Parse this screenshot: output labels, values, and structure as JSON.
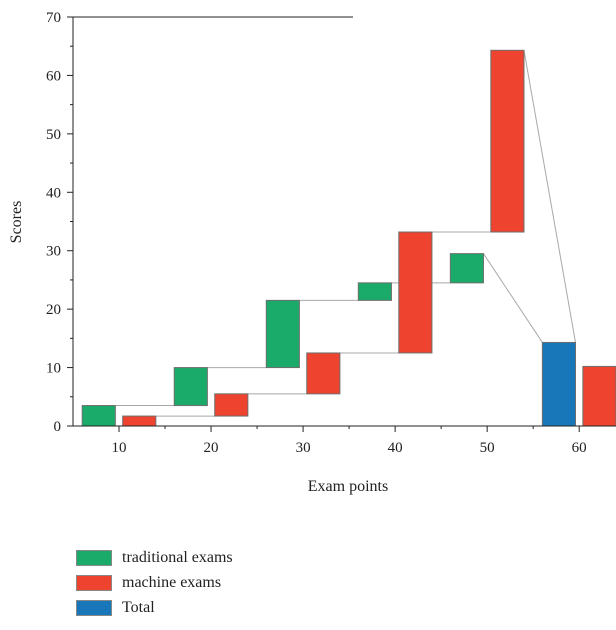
{
  "chart_data": {
    "type": "bar",
    "subtype": "waterfall",
    "title": "",
    "xlabel": "Exam points",
    "ylabel": "Scores",
    "xlim": [
      5,
      64
    ],
    "ylim": [
      0,
      70
    ],
    "xticks": [
      10,
      20,
      30,
      40,
      50,
      60
    ],
    "yticks": [
      0,
      10,
      20,
      30,
      40,
      50,
      60,
      70
    ],
    "series": [
      {
        "name": "traditional exams",
        "color": "#1aaa6a",
        "x": [
          10,
          20,
          30,
          40,
          50
        ],
        "base": [
          0,
          3.5,
          10,
          21.5,
          24.5
        ],
        "top": [
          3.5,
          10,
          21.5,
          24.5,
          29.5
        ]
      },
      {
        "name": "machine exams",
        "color": "#ee432f",
        "x": [
          10,
          20,
          30,
          40,
          50
        ],
        "base": [
          0,
          1.7,
          5.5,
          12.5,
          33.2
        ],
        "top": [
          1.7,
          5.5,
          12.5,
          33.2,
          64.3
        ]
      },
      {
        "name": "Total",
        "color": "#1877b8",
        "x": [
          60
        ],
        "base": [
          0
        ],
        "top": [
          14.3
        ]
      }
    ],
    "extra_bar": {
      "color": "#ee432f",
      "x": 60,
      "base": 0,
      "top": 10.2
    }
  },
  "legend": {
    "items": [
      {
        "label": "traditional exams",
        "color": "#1aaa6a"
      },
      {
        "label": "machine exams",
        "color": "#ee432f"
      },
      {
        "label": "Total",
        "color": "#1877b8"
      }
    ]
  }
}
